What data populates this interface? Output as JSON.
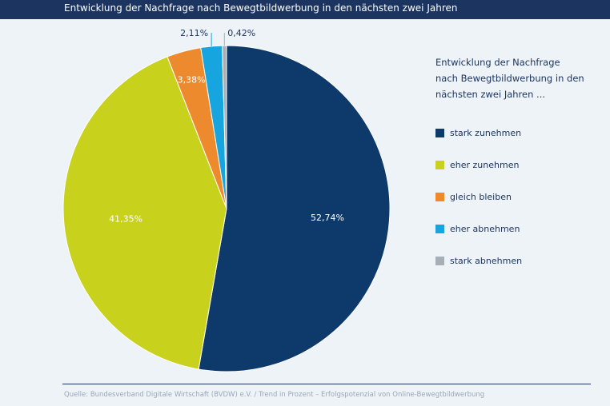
{
  "header": {
    "title": "Entwicklung der Nachfrage nach Bewegtbildwerbung in den nächsten zwei Jahren"
  },
  "legend": {
    "title_lines": [
      "Entwicklung der Nachfrage",
      "nach Bewegtbildwerbung in den",
      "nächsten zwei Jahren ..."
    ]
  },
  "chart_data": {
    "type": "pie",
    "title": "Entwicklung der Nachfrage nach Bewegtbildwerbung in den nächsten zwei Jahren",
    "legend_position": "right",
    "slices": [
      {
        "label": "stark zunehmen",
        "value": 52.74,
        "value_label": "52,74%",
        "color": "#0d3a6b",
        "label_color": "#ffffff"
      },
      {
        "label": "eher zunehmen",
        "value": 41.35,
        "value_label": "41,35%",
        "color": "#c8d21c",
        "label_color": "#ffffff"
      },
      {
        "label": "gleich bleiben",
        "value": 3.38,
        "value_label": "3,38%",
        "color": "#ee8a2e",
        "label_color": "#ffffff"
      },
      {
        "label": "eher abnehmen",
        "value": 2.11,
        "value_label": "2,11%",
        "color": "#16a5df",
        "label_color": "#1c3560"
      },
      {
        "label": "stark abnehmen",
        "value": 0.42,
        "value_label": "0,42%",
        "color": "#a7aeb6",
        "label_color": "#1c3560"
      }
    ]
  },
  "footer": {
    "source": "Quelle: Bundesverband Digitale Wirtschaft (BVDW) e.V. / Trend in Prozent – Erfolgspotenzial von Online-Bewegtbildwerbung"
  }
}
